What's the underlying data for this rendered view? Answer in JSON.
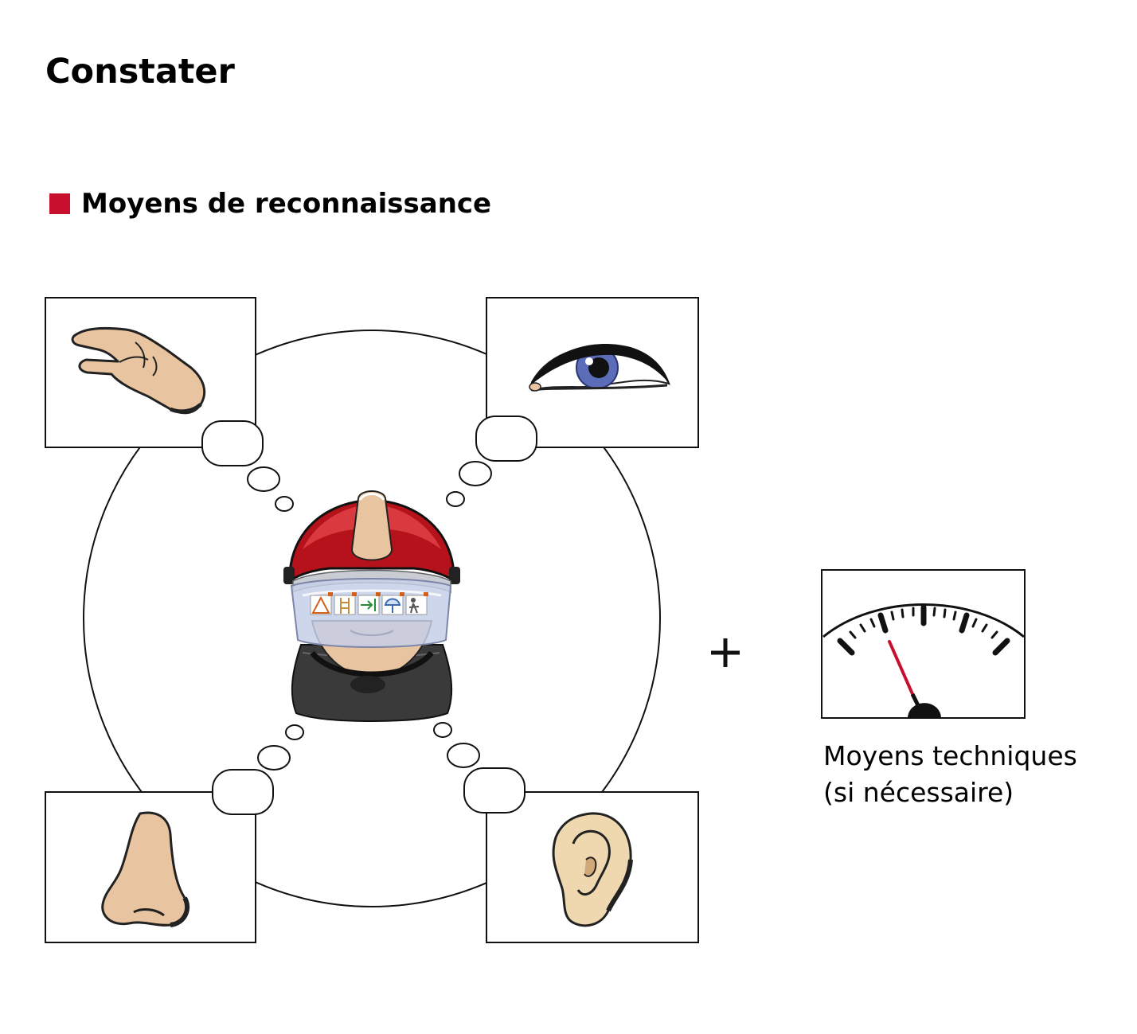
{
  "title": "Constater",
  "section": {
    "label": "Moyens de reconnaissance"
  },
  "senses": [
    {
      "icon": "hand-icon",
      "sense": "toucher"
    },
    {
      "icon": "eye-icon",
      "sense": "vue"
    },
    {
      "icon": "nose-icon",
      "sense": "odorat"
    },
    {
      "icon": "ear-icon",
      "sense": "ouïe"
    }
  ],
  "center_icon": "firefighter-helmet-icon",
  "plus_sign": "+",
  "technical": {
    "icon": "gauge-icon",
    "line1": "Moyens techniques",
    "line2": "(si nécessaire)"
  },
  "colors": {
    "accent": "#c8102e",
    "skin": "#e8c4a0",
    "helmet": "#b5121b",
    "iris": "#5b6cb8"
  }
}
